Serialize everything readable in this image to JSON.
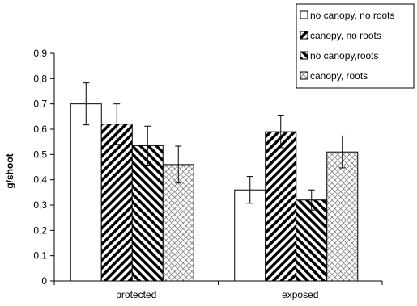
{
  "chart_data": {
    "type": "bar",
    "categories": [
      "protected",
      "exposed"
    ],
    "ylabel": "g/shoot",
    "xlabel": "",
    "ylim": [
      0,
      0.9
    ],
    "yticks": [
      "0",
      "0,1",
      "0,2",
      "0,3",
      "0,4",
      "0,5",
      "0,6",
      "0,7",
      "0,8",
      "0,9"
    ],
    "legend_position": "top-right",
    "series": [
      {
        "name": "no canopy, no roots",
        "values": [
          0.7,
          0.36
        ],
        "errors": [
          0.083,
          0.053
        ],
        "pattern": "white",
        "legend_icon": "open-square"
      },
      {
        "name": "canopy, no roots",
        "values": [
          0.62,
          0.59
        ],
        "errors": [
          0.08,
          0.063
        ],
        "pattern": "diag-up",
        "legend_icon": "diagonal-up"
      },
      {
        "name": "no canopy,roots",
        "values": [
          0.535,
          0.32
        ],
        "errors": [
          0.077,
          0.04
        ],
        "pattern": "diag-down",
        "legend_icon": "diagonal-down"
      },
      {
        "name": "canopy, roots",
        "values": [
          0.46,
          0.51
        ],
        "errors": [
          0.073,
          0.063
        ],
        "pattern": "crosshatch",
        "legend_icon": "crosshatch"
      }
    ]
  }
}
